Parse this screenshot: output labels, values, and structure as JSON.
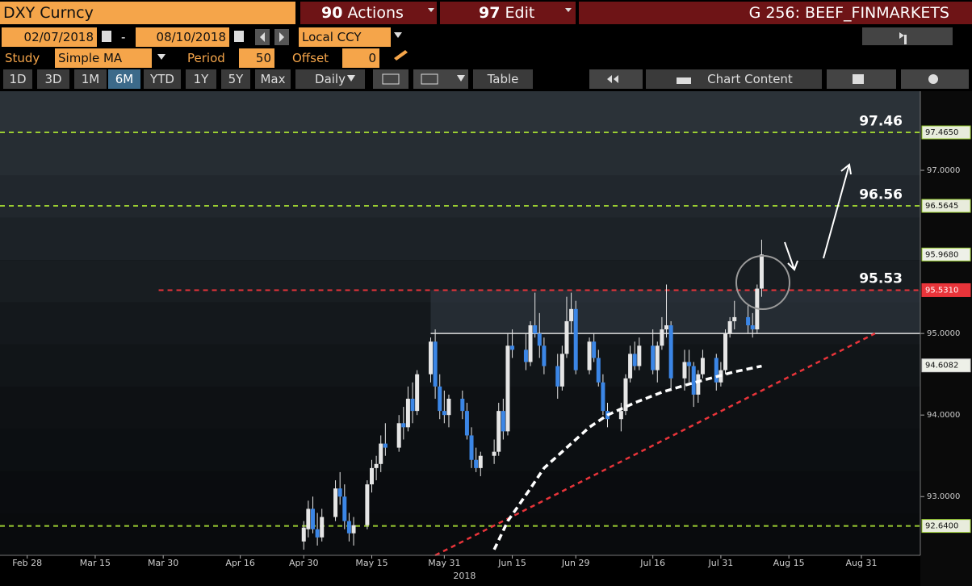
{
  "toolbar": {
    "security": "DXY Curncy",
    "actions": {
      "code": "90",
      "label": "Actions"
    },
    "edit": {
      "code": "97",
      "label": "Edit"
    },
    "page": "G 256: BEEF_FINMARKETS",
    "start_date": "02/07/2018",
    "date_sep": "-",
    "end_date": "08/10/2018",
    "currency": "Local CCY",
    "study_label": "Study",
    "study": "Simple MA",
    "period_label": "Period",
    "period": "50",
    "offset_label": "Offset",
    "offset": "0",
    "ranges": [
      "1D",
      "3D",
      "1M",
      "6M",
      "YTD",
      "1Y",
      "5Y",
      "Max"
    ],
    "active_range": "6M",
    "frequency": "Daily",
    "table": "Table",
    "chart_content": "Chart Content"
  },
  "chart_data": {
    "type": "candlestick",
    "x": [
      "2018-04-30",
      "2018-05-01",
      "2018-05-02",
      "2018-05-03",
      "2018-05-04",
      "2018-05-07",
      "2018-05-08",
      "2018-05-09",
      "2018-05-10",
      "2018-05-11",
      "2018-05-14",
      "2018-05-15",
      "2018-05-16",
      "2018-05-17",
      "2018-05-18",
      "2018-05-21",
      "2018-05-22",
      "2018-05-23",
      "2018-05-24",
      "2018-05-25",
      "2018-05-28",
      "2018-05-29",
      "2018-05-30",
      "2018-05-31",
      "2018-06-01",
      "2018-06-04",
      "2018-06-05",
      "2018-06-06",
      "2018-06-07",
      "2018-06-08",
      "2018-06-11",
      "2018-06-12",
      "2018-06-13",
      "2018-06-14",
      "2018-06-15",
      "2018-06-18",
      "2018-06-19",
      "2018-06-20",
      "2018-06-21",
      "2018-06-22",
      "2018-06-25",
      "2018-06-26",
      "2018-06-27",
      "2018-06-28",
      "2018-06-29",
      "2018-07-02",
      "2018-07-03",
      "2018-07-04",
      "2018-07-05",
      "2018-07-06",
      "2018-07-09",
      "2018-07-10",
      "2018-07-11",
      "2018-07-12",
      "2018-07-13",
      "2018-07-16",
      "2018-07-17",
      "2018-07-18",
      "2018-07-19",
      "2018-07-20",
      "2018-07-23",
      "2018-07-24",
      "2018-07-25",
      "2018-07-26",
      "2018-07-27",
      "2018-07-30",
      "2018-07-31",
      "2018-08-01",
      "2018-08-02",
      "2018-08-03",
      "2018-08-06",
      "2018-08-07",
      "2018-08-08",
      "2018-08-09"
    ],
    "open": [
      92.45,
      92.6,
      92.85,
      92.6,
      92.5,
      92.75,
      93.1,
      93.0,
      92.7,
      92.55,
      92.65,
      93.15,
      93.35,
      93.4,
      93.65,
      93.6,
      93.9,
      93.85,
      94.2,
      94.05,
      94.5,
      94.9,
      94.35,
      94.05,
      94.0,
      94.2,
      94.05,
      93.75,
      93.45,
      93.35,
      93.5,
      93.55,
      94.05,
      93.8,
      94.85,
      94.8,
      94.65,
      95.1,
      95.0,
      94.85,
      94.6,
      94.35,
      94.75,
      95.15,
      95.3,
      94.55,
      94.9,
      94.7,
      94.4,
      94.05,
      93.95,
      94.05,
      94.45,
      94.75,
      94.6,
      94.85,
      94.55,
      94.85,
      95.05,
      95.1,
      94.45,
      94.65,
      94.6,
      94.25,
      94.5,
      94.7,
      94.4,
      94.55,
      95.0,
      95.15,
      95.2,
      95.1,
      95.05,
      95.55
    ],
    "high": [
      92.7,
      92.95,
      93.0,
      92.8,
      92.85,
      93.2,
      93.3,
      93.15,
      92.8,
      92.75,
      93.2,
      93.45,
      93.5,
      93.75,
      93.9,
      94.0,
      94.1,
      94.35,
      94.4,
      94.55,
      94.95,
      95.05,
      94.5,
      94.3,
      94.25,
      94.3,
      94.15,
      93.85,
      93.6,
      93.55,
      93.7,
      94.15,
      94.2,
      95.0,
      95.05,
      95.0,
      95.15,
      95.5,
      95.25,
      94.95,
      94.75,
      94.85,
      95.45,
      95.5,
      95.4,
      94.95,
      95.0,
      94.8,
      94.5,
      94.15,
      94.15,
      94.5,
      94.85,
      94.9,
      94.95,
      95.05,
      94.9,
      95.2,
      95.6,
      95.15,
      94.8,
      94.8,
      94.65,
      94.55,
      94.8,
      94.75,
      94.65,
      95.05,
      95.2,
      95.4,
      95.35,
      95.25,
      95.6,
      96.15
    ],
    "low": [
      92.35,
      92.5,
      92.55,
      92.4,
      92.45,
      92.7,
      92.9,
      92.6,
      92.45,
      92.4,
      92.6,
      93.05,
      93.2,
      93.3,
      93.5,
      93.55,
      93.7,
      93.8,
      93.9,
      94.0,
      94.4,
      94.2,
      93.95,
      93.9,
      93.85,
      93.95,
      93.7,
      93.35,
      93.3,
      93.25,
      93.4,
      93.5,
      93.7,
      93.75,
      94.7,
      94.55,
      94.6,
      94.95,
      94.7,
      94.5,
      94.2,
      94.3,
      94.7,
      95.0,
      94.5,
      94.5,
      94.65,
      94.35,
      94.0,
      93.85,
      93.8,
      94.0,
      94.4,
      94.55,
      94.55,
      94.5,
      94.4,
      94.8,
      94.95,
      94.3,
      94.3,
      94.4,
      94.1,
      94.15,
      94.45,
      94.3,
      94.35,
      94.5,
      94.95,
      95.05,
      95.0,
      94.95,
      95.0,
      95.45
    ],
    "close": [
      92.62,
      92.85,
      92.6,
      92.5,
      92.75,
      93.1,
      93.0,
      92.7,
      92.55,
      92.65,
      93.15,
      93.35,
      93.4,
      93.65,
      93.6,
      93.9,
      93.85,
      94.2,
      94.05,
      94.5,
      94.9,
      94.35,
      94.05,
      94.0,
      94.2,
      94.05,
      93.75,
      93.45,
      93.35,
      93.5,
      93.55,
      94.05,
      93.8,
      94.85,
      94.8,
      94.65,
      95.1,
      95.0,
      94.85,
      94.6,
      94.35,
      94.75,
      95.15,
      95.3,
      94.55,
      94.9,
      94.7,
      94.4,
      94.05,
      93.95,
      94.05,
      94.45,
      94.75,
      94.6,
      94.85,
      94.55,
      94.85,
      95.05,
      95.1,
      94.45,
      94.65,
      94.6,
      94.25,
      94.5,
      94.7,
      94.4,
      94.55,
      95.0,
      95.15,
      95.2,
      95.1,
      95.05,
      95.55,
      95.968
    ],
    "up_color": "#e6e6e6",
    "down_color": "#3b86e6",
    "moving_average": {
      "color": "#ffffff",
      "x": [
        "2018-06-11",
        "2018-06-14",
        "2018-06-19",
        "2018-06-22",
        "2018-06-27",
        "2018-07-02",
        "2018-07-06",
        "2018-07-12",
        "2018-07-18",
        "2018-07-24",
        "2018-07-30",
        "2018-08-03",
        "2018-08-09"
      ],
      "values": [
        92.35,
        92.7,
        93.1,
        93.35,
        93.6,
        93.85,
        94.0,
        94.15,
        94.28,
        94.38,
        94.47,
        94.53,
        94.6
      ]
    },
    "trendline": {
      "color": "#e8343a",
      "x": [
        "2018-05-29",
        "2018-09-03"
      ],
      "values": [
        92.28,
        95.0
      ]
    },
    "zone": {
      "x": "2018-05-28",
      "range": [
        95.0,
        95.531
      ]
    },
    "levels": [
      {
        "value": 97.465,
        "label": "97.4650",
        "color": "#9acd32"
      },
      {
        "value": 96.5645,
        "label": "96.5645",
        "color": "#9acd32"
      },
      {
        "value": 95.531,
        "label": "95.5310",
        "color": "#e8343a",
        "from": "2018-03-29"
      },
      {
        "value": 92.64,
        "label": "92.6400",
        "color": "#9acd32"
      }
    ],
    "level_annotations": [
      97.46,
      96.56,
      95.53
    ],
    "last_price": {
      "value": 95.968,
      "label": "95.9680"
    },
    "ma_last": {
      "value": 94.6082,
      "label": "94.6082"
    },
    "xlim": [
      "2018-02-22",
      "2018-09-13"
    ],
    "xticks": [
      {
        "value": "2018-02-28",
        "label": "Feb 28"
      },
      {
        "value": "2018-03-15",
        "label": "Mar 15"
      },
      {
        "value": "2018-03-30",
        "label": "Mar 30"
      },
      {
        "value": "2018-04-16",
        "label": "Apr 16"
      },
      {
        "value": "2018-04-30",
        "label": "Apr 30"
      },
      {
        "value": "2018-05-15",
        "label": "May 15"
      },
      {
        "value": "2018-05-31",
        "label": "May 31"
      },
      {
        "value": "2018-06-15",
        "label": "Jun 15"
      },
      {
        "value": "2018-06-29",
        "label": "Jun 29"
      },
      {
        "value": "2018-07-16",
        "label": "Jul 16"
      },
      {
        "value": "2018-07-31",
        "label": "Jul 31"
      },
      {
        "value": "2018-08-15",
        "label": "Aug 15"
      },
      {
        "value": "2018-08-31",
        "label": "Aug 31"
      }
    ],
    "xlabel": "2018",
    "ylim": [
      92.28,
      97.97
    ],
    "yticks": [
      {
        "value": 93,
        "label": "93.0000"
      },
      {
        "value": 94,
        "label": "94.0000"
      },
      {
        "value": 95,
        "label": "95.0000"
      },
      {
        "value": 97,
        "label": "97.0000"
      }
    ]
  }
}
